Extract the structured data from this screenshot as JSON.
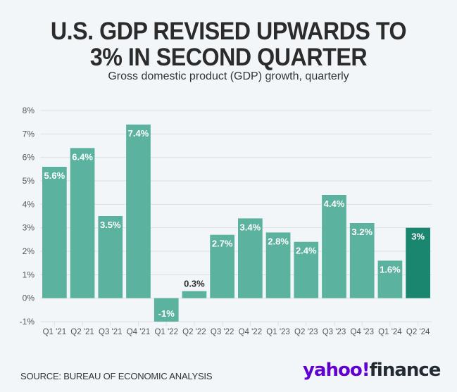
{
  "header": {
    "title_line1": "U.S. GDP REVISED UPWARDS TO",
    "title_line2": "3% IN SECOND QUARTER",
    "subtitle": "Gross domestic product (GDP) growth, quarterly"
  },
  "footer": {
    "source": "SOURCE: BUREAU OF ECONOMIC ANALYSIS",
    "logo_yahoo": "yahoo",
    "logo_bang": "!",
    "logo_finance": "finance"
  },
  "colors": {
    "bar": "#5bb39f",
    "highlight_bar": "#1b8670",
    "grid": "#dcdfe3",
    "tick_text": "#555555",
    "label_outside": "#2b2b2b",
    "label_inside": "#ffffff",
    "logo_purple": "#6001d2"
  },
  "chart_data": {
    "type": "bar",
    "title": "U.S. GDP REVISED UPWARDS TO 3% IN SECOND QUARTER",
    "subtitle": "Gross domestic product (GDP) growth, quarterly",
    "xlabel": "",
    "ylabel": "",
    "categories": [
      "Q1 '21",
      "Q2 '21",
      "Q3 '21",
      "Q4 '21",
      "Q1 '22",
      "Q2 '22",
      "Q3 '22",
      "Q4 '22",
      "Q1 '23",
      "Q2 '23",
      "Q3 '23",
      "Q4 '23",
      "Q1 '24",
      "Q2 '24"
    ],
    "values": [
      5.6,
      6.4,
      3.5,
      7.4,
      -1,
      0.3,
      2.7,
      3.4,
      2.8,
      2.4,
      4.4,
      3.2,
      1.6,
      3
    ],
    "data_labels": [
      "5.6%",
      "6.4%",
      "3.5%",
      "7.4%",
      "-1%",
      "0.3%",
      "2.7%",
      "3.4%",
      "2.8%",
      "2.4%",
      "4.4%",
      "3.2%",
      "1.6%",
      "3%"
    ],
    "highlight_index": 13,
    "ylim": [
      -1,
      8
    ],
    "yticks": [
      -1,
      0,
      1,
      2,
      3,
      4,
      5,
      6,
      7,
      8
    ],
    "ytick_labels": [
      "-1%",
      "0%",
      "1%",
      "2%",
      "3%",
      "4%",
      "5%",
      "6%",
      "7%",
      "8%"
    ],
    "grid": true,
    "legend": "none",
    "source": "SOURCE: BUREAU OF ECONOMIC ANALYSIS"
  }
}
